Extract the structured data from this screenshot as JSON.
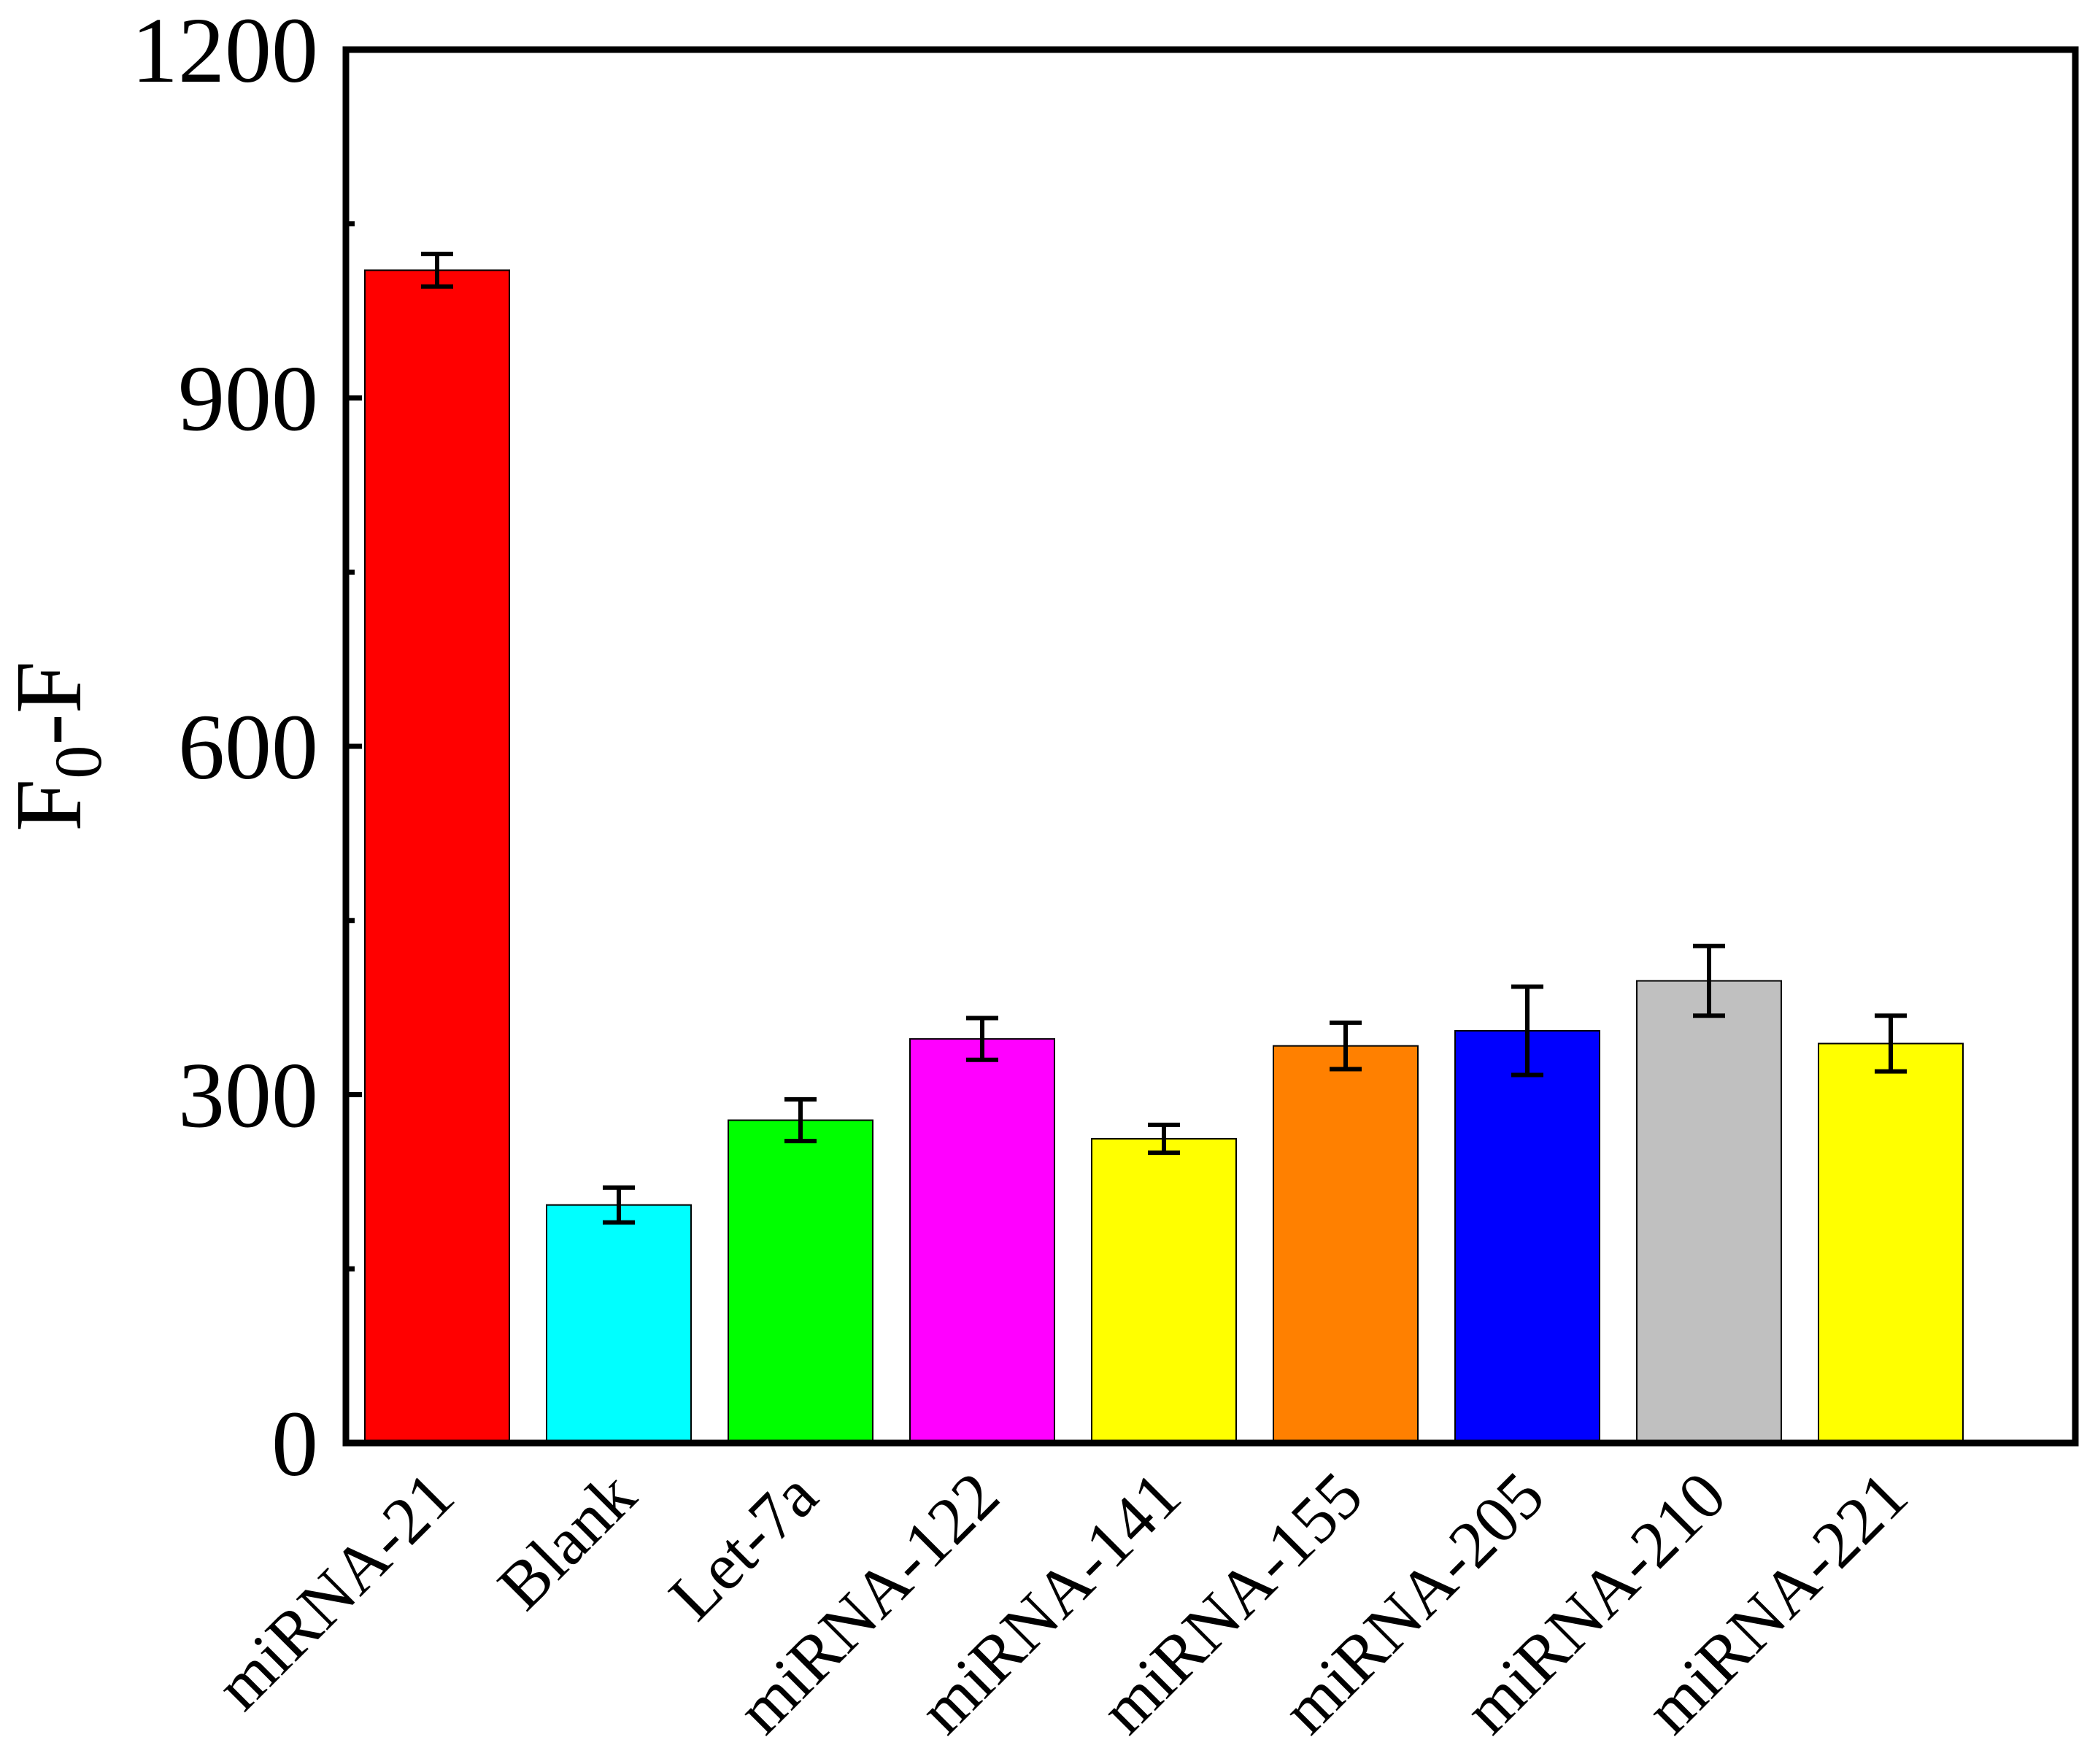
{
  "chart_data": {
    "type": "bar",
    "title": "",
    "xlabel": "",
    "ylabel": {
      "main": "F",
      "subscript": "0",
      "rest": "-F"
    },
    "ylim": [
      0,
      1200
    ],
    "yticks": [
      0,
      300,
      600,
      900,
      1200
    ],
    "yticks_minor": [
      150,
      450,
      750,
      1050
    ],
    "grid": false,
    "legend": "none",
    "categories": [
      "miRNA-21",
      "Blank",
      "Let-7a",
      "miRNA-122",
      "miRNA-141",
      "miRNA-155",
      "miRNA-205",
      "miRNA-210",
      "miRNA-221"
    ],
    "values": [
      1010,
      205,
      278,
      348,
      262,
      342,
      355,
      398,
      344
    ],
    "errors": [
      14,
      15,
      18,
      18,
      12,
      20,
      38,
      30,
      24
    ],
    "colors": [
      "#ff0000",
      "#00ffff",
      "#00ff00",
      "#ff00ff",
      "#ffff00",
      "#ff8000",
      "#0000ff",
      "#c0c0c0",
      "#ffff00"
    ]
  }
}
